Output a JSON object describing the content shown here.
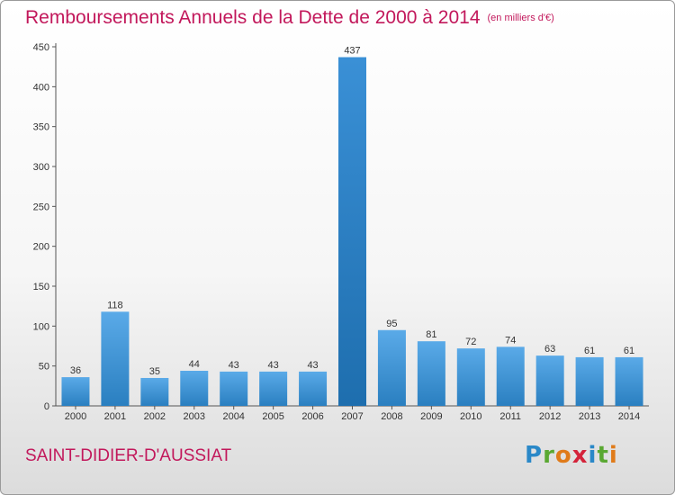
{
  "header": {
    "title": "Remboursements Annuels de la Dette de 2000 à 2014",
    "unit": "(en milliers d'€)"
  },
  "footer": {
    "commune": "SAINT-DIDIER-D'AUSSIAT",
    "logo": {
      "p": "P",
      "r": "r",
      "o": "o",
      "x": "x",
      "i1": "i",
      "t": "t",
      "i2": "i"
    }
  },
  "colors": {
    "title": "#c2185b",
    "bar_light": "#5aaae8",
    "bar_dark": "#2a7fc0"
  },
  "chart_data": {
    "type": "bar",
    "title": "Remboursements Annuels de la Dette de 2000 à 2014",
    "subtitle": "(en milliers d'€)",
    "xlabel": "",
    "ylabel": "",
    "categories": [
      "2000",
      "2001",
      "2002",
      "2003",
      "2004",
      "2005",
      "2006",
      "2007",
      "2008",
      "2009",
      "2010",
      "2011",
      "2012",
      "2013",
      "2014"
    ],
    "values": [
      36,
      118,
      35,
      44,
      43,
      43,
      43,
      437,
      95,
      81,
      72,
      74,
      63,
      61,
      61
    ],
    "ylim": [
      0,
      450
    ],
    "yticks": [
      0,
      50,
      100,
      150,
      200,
      250,
      300,
      350,
      400,
      450
    ],
    "grid": false,
    "legend": "none"
  }
}
